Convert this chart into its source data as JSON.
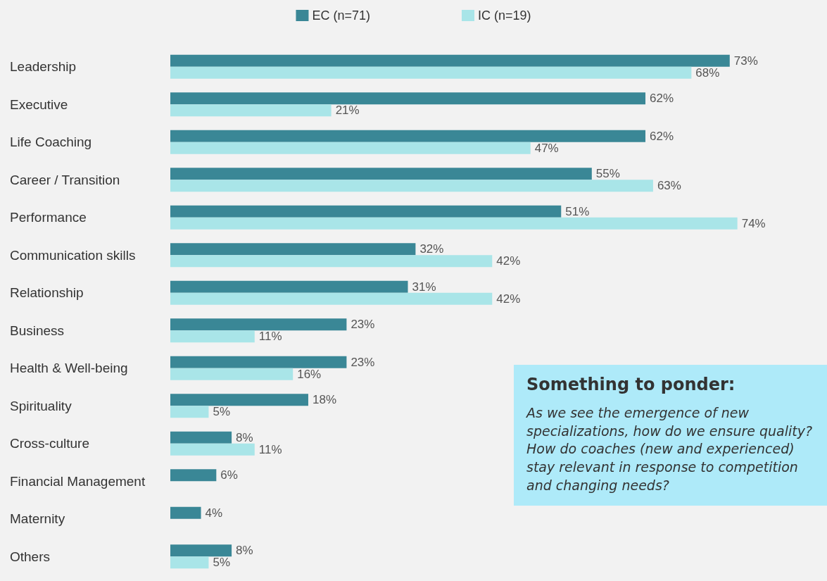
{
  "chart_data": {
    "type": "bar",
    "orientation": "horizontal",
    "categories": [
      "Leadership",
      "Executive",
      "Life Coaching",
      "Career / Transition",
      "Performance",
      "Communication skills",
      "Relationship",
      "Business",
      "Health & Well-being",
      "Spirituality",
      "Cross-culture",
      "Financial Management",
      "Maternity",
      "Others"
    ],
    "series": [
      {
        "name": "EC (n=71)",
        "color": "#3a8796",
        "values": [
          73,
          62,
          62,
          55,
          51,
          32,
          31,
          23,
          23,
          18,
          8,
          6,
          4,
          8
        ],
        "value_labels": [
          "73%",
          "62%",
          "62%",
          "55%",
          "51%",
          "32%",
          "31%",
          "23%",
          "23%",
          "18%",
          "8%",
          "6%",
          "4%",
          "8%"
        ]
      },
      {
        "name": "IC (n=19)",
        "color": "#a9e5e8",
        "values": [
          68,
          21,
          47,
          63,
          74,
          42,
          42,
          11,
          16,
          5,
          11,
          null,
          null,
          5
        ],
        "value_labels": [
          "68%",
          "21%",
          "47%",
          "63%",
          "74%",
          "42%",
          "42%",
          "11%",
          "16%",
          "5%",
          "11%",
          null,
          null,
          "5%"
        ]
      }
    ],
    "legend": "top",
    "grid": false,
    "annotations": [
      "Something to ponder:",
      "As we see the emergence of new specializations, how do we ensure quality? How do coaches (new and experienced) stay relevant in response to competition and changing needs?"
    ]
  }
}
